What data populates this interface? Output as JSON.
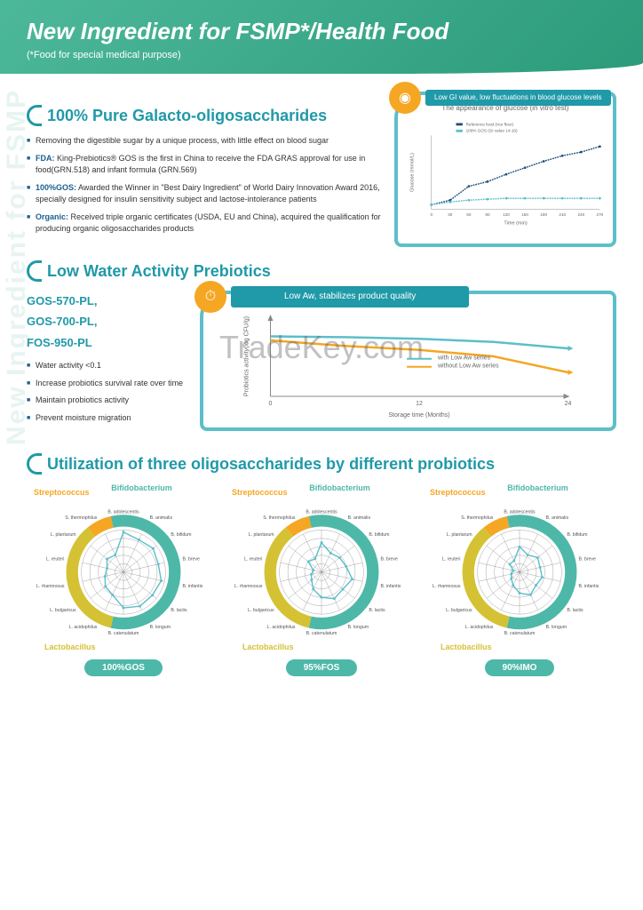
{
  "header": {
    "title": "New Ingredient for FSMP*/Health Food",
    "subtitle": "(*Food for special medical purpose)"
  },
  "side_watermark": "New Ingredient for FSMP",
  "watermark": "TradeKey.com",
  "section1": {
    "title": "100% Pure Galacto-oligosaccharides",
    "bullets": [
      {
        "text": "Removing the digestible sugar by a unique process, with little effect on blood sugar"
      },
      {
        "prefix": "FDA:",
        "text": " King-Prebiotics® GOS is the first in China to receive the FDA GRAS approval for use in food(GRN.518) and infant formula (GRN.569)"
      },
      {
        "prefix": "100%GOS:",
        "text": " Awarded the Winner in \"Best Dairy Ingredient\" of World Dairy Innovation Award 2016, specially designed for insulin sensitivity subject and lactose-intolerance patients"
      },
      {
        "prefix": "Organic:",
        "text": " Received triple organic certificates (USDA, EU and China), acquired the qualification for producing organic oligosaccharides products"
      }
    ],
    "chart": {
      "badge_text": "Low GI value, low fluctuations in blood glucose levels",
      "title": "The appearance of glucose (in vitro test)",
      "ylabel": "Glucose (mmol/L)",
      "xlabel": "Time (min)",
      "xticks": [
        "0",
        "30",
        "60",
        "90",
        "120",
        "150",
        "180",
        "210",
        "240",
        "270"
      ],
      "legend": [
        "Reference food (rice flour)",
        "100% GOS (GI value 14-16)"
      ],
      "series1": {
        "color": "#1a4d7a",
        "points": [
          [
            0,
            5
          ],
          [
            30,
            10
          ],
          [
            60,
            25
          ],
          [
            90,
            30
          ],
          [
            120,
            38
          ],
          [
            150,
            45
          ],
          [
            180,
            52
          ],
          [
            210,
            58
          ],
          [
            240,
            62
          ],
          [
            270,
            68
          ]
        ]
      },
      "series2": {
        "color": "#5cbfc9",
        "points": [
          [
            0,
            5
          ],
          [
            30,
            8
          ],
          [
            60,
            10
          ],
          [
            90,
            11
          ],
          [
            120,
            12
          ],
          [
            150,
            12
          ],
          [
            180,
            12
          ],
          [
            210,
            12
          ],
          [
            240,
            12
          ],
          [
            270,
            12
          ]
        ]
      }
    }
  },
  "section2": {
    "title": "Low Water Activity Prebiotics",
    "codes": [
      "GOS-570-PL,",
      "GOS-700-PL,",
      "FOS-950-PL"
    ],
    "bullets": [
      "Water activity <0.1",
      "Increase probiotics survival rate over time",
      "Maintain probiotics activity",
      "Prevent moisture migration"
    ],
    "chart": {
      "badge_text": "Low Aw, stabilizes product quality",
      "ylabel": "Probiotics activity(log CFU/g)",
      "xlabel": "Storage time (Months)",
      "xticks": [
        "0",
        "12",
        "24"
      ],
      "legend": [
        "with Low Aw series",
        "without Low Aw series"
      ],
      "series1": {
        "color": "#5cbfc9",
        "points": [
          [
            0,
            75
          ],
          [
            6,
            74
          ],
          [
            12,
            72
          ],
          [
            18,
            68
          ],
          [
            24,
            60
          ]
        ]
      },
      "series2": {
        "color": "#f5a623",
        "points": [
          [
            0,
            70
          ],
          [
            6,
            63
          ],
          [
            12,
            58
          ],
          [
            18,
            50
          ],
          [
            24,
            30
          ]
        ]
      }
    }
  },
  "section3": {
    "title": "Utilization of three oligosaccharides by different probiotics",
    "groups": {
      "bifido": "Bifidobacterium",
      "strepto": "Streptococcus",
      "lacto": "Lactobacillus"
    },
    "species": [
      "B. adolescentis",
      "B. animalis",
      "B. bifidum",
      "B. breve",
      "B. infantis",
      "B. lactis",
      "B. longum",
      "B. catenulatum",
      "L. acidophilus",
      "L. bulgaricus",
      "L. rhamnosus",
      "L. reuteri",
      "L. plantarum",
      "S. thermophilus"
    ],
    "colors": {
      "bifido_ring": "#4db8a8",
      "lacto_ring": "#d4c234",
      "strepto_ring": "#f5a623",
      "line": "#5cbfc9",
      "grid": "#888"
    },
    "charts": [
      {
        "label": "100%GOS",
        "values": [
          95,
          85,
          90,
          85,
          92,
          88,
          90,
          85,
          60,
          55,
          45,
          40,
          50,
          45
        ]
      },
      {
        "label": "95%FOS",
        "values": [
          70,
          50,
          55,
          60,
          75,
          65,
          70,
          60,
          45,
          30,
          25,
          20,
          40,
          35
        ]
      },
      {
        "label": "90%IMO",
        "values": [
          60,
          45,
          55,
          50,
          55,
          50,
          60,
          50,
          35,
          25,
          20,
          15,
          30,
          30
        ]
      }
    ]
  }
}
